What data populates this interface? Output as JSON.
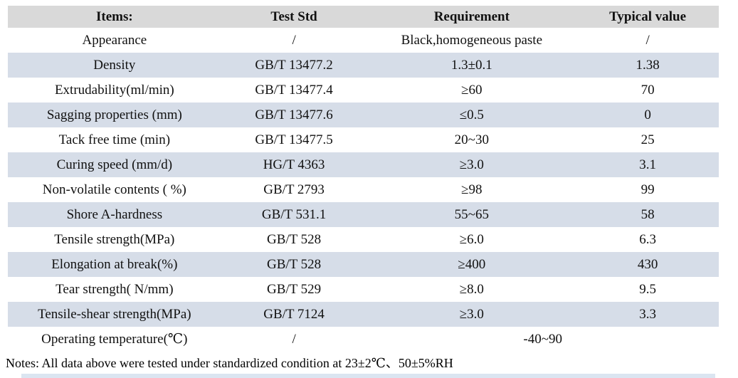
{
  "table": {
    "headers": [
      "Items:",
      "Test Std",
      "Requirement",
      "Typical value"
    ],
    "rows": [
      {
        "item": "Appearance",
        "std": "/",
        "req": "Black,homogeneous paste",
        "typ": "/",
        "shaded": false,
        "span": false
      },
      {
        "item": "Density",
        "std": "GB/T 13477.2",
        "req": "1.3±0.1",
        "typ": "1.38",
        "shaded": true,
        "span": false
      },
      {
        "item": "Extrudability(ml/min)",
        "std": "GB/T 13477.4",
        "req": "≥60",
        "typ": "70",
        "shaded": false,
        "span": false
      },
      {
        "item": "Sagging properties (mm)",
        "std": "GB/T 13477.6",
        "req": "≤0.5",
        "typ": "0",
        "shaded": true,
        "span": false
      },
      {
        "item": "Tack free time (min)",
        "std": "GB/T 13477.5",
        "req": "20~30",
        "typ": "25",
        "shaded": false,
        "span": false
      },
      {
        "item": "Curing speed (mm/d)",
        "std": "HG/T 4363",
        "req": "≥3.0",
        "typ": "3.1",
        "shaded": true,
        "span": false
      },
      {
        "item": "Non-volatile contents ( %)",
        "std": "GB/T 2793",
        "req": "≥98",
        "typ": "99",
        "shaded": false,
        "span": false
      },
      {
        "item": "Shore A-hardness",
        "std": "GB/T 531.1",
        "req": "55~65",
        "typ": "58",
        "shaded": true,
        "span": false
      },
      {
        "item": "Tensile strength(MPa)",
        "std": "GB/T 528",
        "req": "≥6.0",
        "typ": "6.3",
        "shaded": false,
        "span": false
      },
      {
        "item": "Elongation at break(%)",
        "std": "GB/T 528",
        "req": "≥400",
        "typ": "430",
        "shaded": true,
        "span": false
      },
      {
        "item": "Tear strength( N/mm)",
        "std": "GB/T 529",
        "req": "≥8.0",
        "typ": "9.5",
        "shaded": false,
        "span": false
      },
      {
        "item": "Tensile-shear strength(MPa)",
        "std": "GB/T 7124",
        "req": "≥3.0",
        "typ": "3.3",
        "shaded": true,
        "span": false
      },
      {
        "item": "Operating temperature(℃)",
        "std": "/",
        "req": "-40~90",
        "typ": null,
        "shaded": false,
        "span": true
      }
    ]
  },
  "notes": "Notes: All data above were tested under standardized condition at 23±2℃、50±5%RH",
  "colors": {
    "header_bg": "#d9d9d9",
    "shaded_row_bg": "#d6dde8",
    "text": "#111111",
    "bottom_bar": "#dbe5f1"
  }
}
